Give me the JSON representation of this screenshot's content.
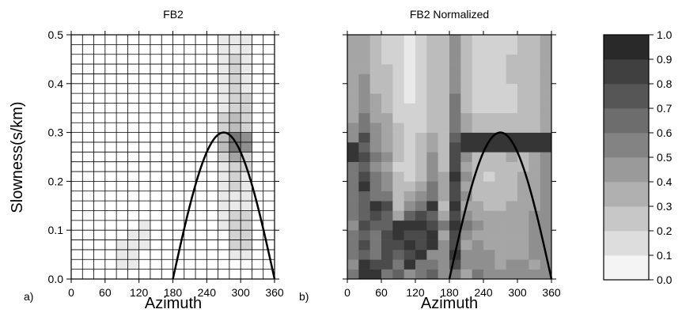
{
  "chart_data": [
    {
      "type": "heatmap",
      "panel_label": "a)",
      "title": "FB2",
      "xlabel": "Azimuth",
      "ylabel": "Slowness(s/km)",
      "xlim": [
        0,
        360
      ],
      "ylim": [
        0,
        0.5
      ],
      "xticks": [
        "0",
        "60",
        "120",
        "180",
        "240",
        "300",
        "360"
      ],
      "yticks": [
        "0.0",
        "0.1",
        "0.2",
        "0.3",
        "0.4",
        "0.5"
      ],
      "azimuth_bin": 20,
      "slowness_bin": 0.02,
      "grid": true,
      "note": "cell values 0-1 grayscale; row 0 = slowness 0.00-0.02",
      "cells": [
        [
          0,
          0,
          0,
          0,
          0,
          0,
          0,
          0,
          0,
          0,
          0,
          0,
          0,
          0,
          0,
          0,
          0,
          0
        ],
        [
          0,
          0,
          0,
          0,
          0.1,
          0.1,
          0,
          0,
          0,
          0,
          0,
          0,
          0,
          0,
          0,
          0,
          0,
          0
        ],
        [
          0,
          0,
          0,
          0,
          0.1,
          0.1,
          0,
          0,
          0,
          0,
          0,
          0,
          0,
          0,
          0.1,
          0.1,
          0,
          0
        ],
        [
          0,
          0,
          0,
          0,
          0.1,
          0.1,
          0.1,
          0,
          0,
          0,
          0,
          0,
          0,
          0,
          0.2,
          0.2,
          0,
          0
        ],
        [
          0,
          0,
          0,
          0,
          0,
          0.1,
          0.1,
          0,
          0,
          0,
          0,
          0,
          0,
          0,
          0.2,
          0.2,
          0,
          0
        ],
        [
          0,
          0,
          0,
          0,
          0,
          0,
          0.1,
          0,
          0,
          0,
          0,
          0,
          0,
          0.1,
          0.2,
          0.2,
          0,
          0
        ],
        [
          0,
          0,
          0,
          0,
          0,
          0,
          0,
          0,
          0,
          0,
          0,
          0,
          0,
          0.1,
          0.2,
          0.2,
          0,
          0
        ],
        [
          0,
          0,
          0,
          0,
          0,
          0,
          0,
          0,
          0,
          0,
          0,
          0,
          0,
          0.1,
          0.1,
          0.1,
          0,
          0
        ],
        [
          0,
          0,
          0,
          0,
          0,
          0,
          0,
          0,
          0,
          0,
          0,
          0,
          0,
          0.1,
          0.1,
          0.1,
          0,
          0
        ],
        [
          0,
          0,
          0,
          0,
          0,
          0,
          0,
          0,
          0,
          0,
          0,
          0,
          0,
          0.1,
          0.2,
          0.1,
          0,
          0
        ],
        [
          0,
          0,
          0,
          0,
          0,
          0,
          0,
          0,
          0,
          0,
          0,
          0,
          0,
          0.1,
          0.2,
          0.1,
          0,
          0
        ],
        [
          0,
          0,
          0,
          0,
          0,
          0,
          0,
          0,
          0,
          0,
          0,
          0,
          0,
          0.1,
          0.2,
          0.2,
          0,
          0
        ],
        [
          0,
          0,
          0,
          0,
          0,
          0,
          0,
          0,
          0,
          0,
          0,
          0,
          0,
          0.2,
          0.4,
          0.2,
          0,
          0
        ],
        [
          0,
          0,
          0,
          0,
          0,
          0,
          0,
          0,
          0,
          0,
          0,
          0,
          0,
          0.3,
          0.6,
          0.5,
          0,
          0
        ],
        [
          0,
          0,
          0,
          0,
          0,
          0,
          0,
          0,
          0,
          0,
          0,
          0,
          0,
          0.3,
          0.6,
          0.5,
          0,
          0
        ],
        [
          0,
          0,
          0,
          0,
          0,
          0,
          0,
          0,
          0,
          0,
          0,
          0,
          0,
          0.2,
          0.3,
          0.2,
          0,
          0
        ],
        [
          0,
          0,
          0,
          0,
          0,
          0,
          0,
          0,
          0,
          0,
          0,
          0,
          0,
          0.2,
          0.3,
          0.2,
          0,
          0
        ],
        [
          0,
          0,
          0,
          0,
          0,
          0,
          0,
          0,
          0,
          0,
          0,
          0,
          0,
          0.1,
          0.2,
          0.2,
          0,
          0
        ],
        [
          0,
          0,
          0,
          0,
          0,
          0,
          0,
          0,
          0,
          0,
          0,
          0,
          0,
          0.1,
          0.2,
          0.2,
          0,
          0
        ],
        [
          0,
          0,
          0,
          0,
          0,
          0,
          0,
          0,
          0,
          0,
          0,
          0,
          0,
          0.1,
          0.2,
          0.1,
          0,
          0
        ],
        [
          0,
          0,
          0,
          0,
          0,
          0,
          0,
          0,
          0,
          0,
          0,
          0,
          0,
          0.1,
          0.2,
          0.1,
          0,
          0
        ],
        [
          0,
          0,
          0,
          0,
          0,
          0,
          0,
          0,
          0,
          0,
          0,
          0,
          0,
          0.1,
          0.2,
          0.1,
          0,
          0
        ],
        [
          0,
          0,
          0,
          0,
          0,
          0,
          0,
          0,
          0,
          0,
          0,
          0,
          0,
          0.1,
          0.2,
          0.1,
          0,
          0
        ],
        [
          0,
          0,
          0,
          0,
          0,
          0,
          0,
          0,
          0,
          0,
          0,
          0,
          0,
          0.1,
          0.1,
          0.1,
          0,
          0
        ],
        [
          0,
          0,
          0,
          0,
          0,
          0,
          0,
          0,
          0,
          0,
          0,
          0,
          0,
          0.1,
          0.1,
          0.1,
          0,
          0
        ]
      ],
      "curve": {
        "type": "sinusoid",
        "x_range": [
          180,
          360
        ],
        "peak_x": 270,
        "peak_y": 0.3
      }
    },
    {
      "type": "heatmap",
      "panel_label": "b)",
      "title": "FB2 Normalized",
      "xlabel": "Azimuth",
      "xlim": [
        0,
        360
      ],
      "ylim": [
        0,
        0.5
      ],
      "xticks": [
        "0",
        "60",
        "120",
        "180",
        "240",
        "300",
        "360"
      ],
      "yticks": [
        "0.0",
        "0.1",
        "0.2",
        "0.3",
        "0.4",
        "0.5"
      ],
      "azimuth_bin": 20,
      "slowness_bin": 0.02,
      "grid": false,
      "cells": [
        [
          0.6,
          0.9,
          0.9,
          0.6,
          0.7,
          0.5,
          0.6,
          0.7,
          0.5,
          0.6,
          0.4,
          0.6,
          0.5,
          0.5,
          0.5,
          0.5,
          0.5,
          0.5
        ],
        [
          0.5,
          0.9,
          0.8,
          0.8,
          0.6,
          0.9,
          0.6,
          0.6,
          0.5,
          0.8,
          0.5,
          0.5,
          0.5,
          0.4,
          0.5,
          0.5,
          0.4,
          0.5
        ],
        [
          0.6,
          0.7,
          0.6,
          0.8,
          0.7,
          0.8,
          0.9,
          0.5,
          0.5,
          0.9,
          0.5,
          0.5,
          0.5,
          0.4,
          0.4,
          0.4,
          0.5,
          0.5
        ],
        [
          0.6,
          0.8,
          0.6,
          0.8,
          0.8,
          0.9,
          0.8,
          0.9,
          0.5,
          0.8,
          0.4,
          0.5,
          0.4,
          0.4,
          0.4,
          0.4,
          0.5,
          0.5
        ],
        [
          0.6,
          0.7,
          0.6,
          0.8,
          0.9,
          0.8,
          0.8,
          0.9,
          0.4,
          0.8,
          0.5,
          0.4,
          0.4,
          0.4,
          0.4,
          0.4,
          0.5,
          0.5
        ],
        [
          0.5,
          0.8,
          0.7,
          0.7,
          0.9,
          0.9,
          0.9,
          0.8,
          0.6,
          0.9,
          0.6,
          0.5,
          0.4,
          0.4,
          0.4,
          0.4,
          0.5,
          0.5
        ],
        [
          0.6,
          0.7,
          0.8,
          0.7,
          0.4,
          0.7,
          0.8,
          0.7,
          0.4,
          0.8,
          0.5,
          0.4,
          0.4,
          0.4,
          0.4,
          0.4,
          0.5,
          0.5
        ],
        [
          0.6,
          0.7,
          0.9,
          0.8,
          0.3,
          0.5,
          0.6,
          0.9,
          0.3,
          0.9,
          0.4,
          0.4,
          0.3,
          0.3,
          0.4,
          0.4,
          0.4,
          0.5
        ],
        [
          0.6,
          0.7,
          0.6,
          0.6,
          0.3,
          0.4,
          0.5,
          0.6,
          0.4,
          0.8,
          0.5,
          0.3,
          0.3,
          0.3,
          0.3,
          0.4,
          0.4,
          0.5
        ],
        [
          0.6,
          0.9,
          0.6,
          0.5,
          0.3,
          0.3,
          0.4,
          0.6,
          0.4,
          0.8,
          0.4,
          0.3,
          0.3,
          0.3,
          0.3,
          0.4,
          0.4,
          0.5
        ],
        [
          0.6,
          0.8,
          0.6,
          0.5,
          0.3,
          0.2,
          0.3,
          0.5,
          0.4,
          0.9,
          0.5,
          0.3,
          0.2,
          0.3,
          0.3,
          0.4,
          0.4,
          0.5
        ],
        [
          0.6,
          0.7,
          0.5,
          0.4,
          0.2,
          0.2,
          0.3,
          0.5,
          0.3,
          0.8,
          0.4,
          0.3,
          0.3,
          0.3,
          0.3,
          0.3,
          0.4,
          0.5
        ],
        [
          0.9,
          0.8,
          0.6,
          0.5,
          0.3,
          0.2,
          0.3,
          0.5,
          0.3,
          0.8,
          0.5,
          0.3,
          0.3,
          0.3,
          0.4,
          0.3,
          0.4,
          0.5
        ],
        [
          0.9,
          0.7,
          0.5,
          0.4,
          0.3,
          0.2,
          0.3,
          0.4,
          0.3,
          0.8,
          0.9,
          0.9,
          0.9,
          0.9,
          0.9,
          0.9,
          0.9,
          0.9
        ],
        [
          0.5,
          0.8,
          0.5,
          0.4,
          0.3,
          0.2,
          0.3,
          0.4,
          0.3,
          0.7,
          0.9,
          0.9,
          0.9,
          0.9,
          0.9,
          0.9,
          0.9,
          0.9
        ],
        [
          0.5,
          0.6,
          0.5,
          0.4,
          0.3,
          0.2,
          0.2,
          0.3,
          0.3,
          0.6,
          0.4,
          0.3,
          0.3,
          0.3,
          0.3,
          0.3,
          0.3,
          0.4
        ],
        [
          0.4,
          0.6,
          0.4,
          0.4,
          0.2,
          0.2,
          0.2,
          0.3,
          0.3,
          0.6,
          0.4,
          0.3,
          0.3,
          0.3,
          0.3,
          0.3,
          0.3,
          0.4
        ],
        [
          0.4,
          0.5,
          0.4,
          0.3,
          0.2,
          0.2,
          0.2,
          0.3,
          0.3,
          0.6,
          0.3,
          0.2,
          0.2,
          0.2,
          0.2,
          0.3,
          0.3,
          0.4
        ],
        [
          0.4,
          0.5,
          0.4,
          0.3,
          0.2,
          0.1,
          0.2,
          0.3,
          0.3,
          0.6,
          0.3,
          0.2,
          0.2,
          0.2,
          0.2,
          0.3,
          0.3,
          0.4
        ],
        [
          0.4,
          0.5,
          0.3,
          0.3,
          0.2,
          0.1,
          0.2,
          0.3,
          0.3,
          0.5,
          0.3,
          0.2,
          0.2,
          0.2,
          0.2,
          0.3,
          0.3,
          0.4
        ],
        [
          0.4,
          0.5,
          0.3,
          0.3,
          0.2,
          0.1,
          0.2,
          0.3,
          0.3,
          0.5,
          0.3,
          0.2,
          0.2,
          0.2,
          0.3,
          0.3,
          0.3,
          0.4
        ],
        [
          0.4,
          0.4,
          0.3,
          0.3,
          0.2,
          0.1,
          0.2,
          0.3,
          0.3,
          0.5,
          0.3,
          0.2,
          0.2,
          0.2,
          0.3,
          0.3,
          0.3,
          0.4
        ],
        [
          0.4,
          0.4,
          0.3,
          0.2,
          0.2,
          0.1,
          0.2,
          0.3,
          0.3,
          0.5,
          0.3,
          0.2,
          0.2,
          0.2,
          0.3,
          0.3,
          0.3,
          0.4
        ],
        [
          0.4,
          0.4,
          0.3,
          0.2,
          0.2,
          0.1,
          0.2,
          0.3,
          0.3,
          0.5,
          0.3,
          0.2,
          0.2,
          0.2,
          0.2,
          0.3,
          0.3,
          0.4
        ],
        [
          0.4,
          0.4,
          0.3,
          0.2,
          0.2,
          0.1,
          0.2,
          0.3,
          0.3,
          0.5,
          0.3,
          0.2,
          0.2,
          0.2,
          0.2,
          0.3,
          0.3,
          0.4
        ]
      ],
      "curve": {
        "type": "sinusoid",
        "x_range": [
          180,
          360
        ],
        "peak_x": 270,
        "peak_y": 0.3
      }
    }
  ],
  "colorbar": {
    "ticks": [
      "0.0",
      "0.1",
      "0.2",
      "0.3",
      "0.4",
      "0.5",
      "0.6",
      "0.7",
      "0.8",
      "0.9",
      "1.0"
    ],
    "levels": [
      0,
      0.1,
      0.2,
      0.3,
      0.4,
      0.5,
      0.6,
      0.7,
      0.8,
      0.9
    ]
  }
}
